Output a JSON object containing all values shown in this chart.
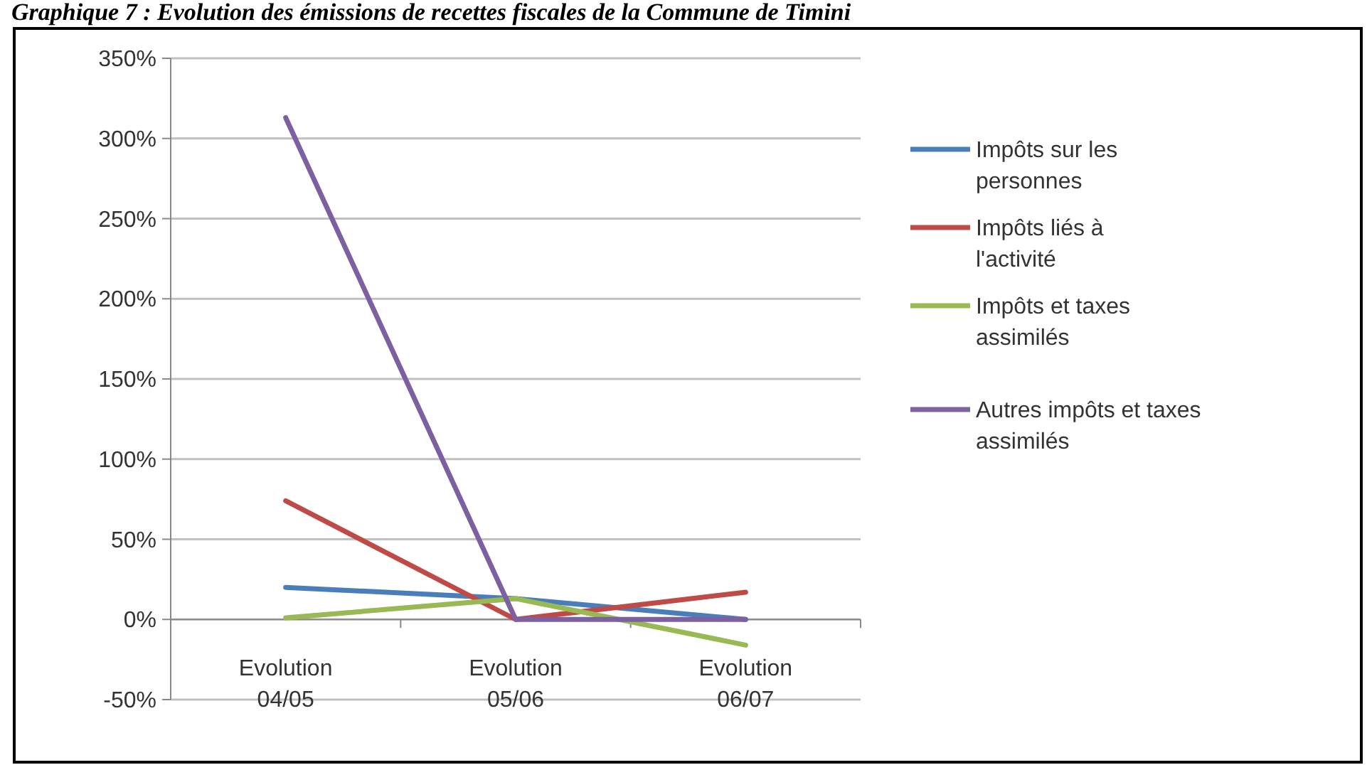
{
  "chart_data": {
    "type": "line",
    "title": "Graphique 7 : Evolution des émissions de recettes fiscales de la Commune de Timini",
    "categories": [
      "Evolution 04/05",
      "Evolution 05/06",
      "Evolution 06/07"
    ],
    "series": [
      {
        "name": "Impôts sur les personnes",
        "color": "#4a7ebb",
        "values": [
          20,
          13,
          0
        ]
      },
      {
        "name": "Impôts liés à l'activité",
        "color": "#be4b48",
        "values": [
          74,
          0,
          17
        ]
      },
      {
        "name": "Impôts et taxes assimilés",
        "color": "#98b954",
        "values": [
          1,
          13,
          -16
        ]
      },
      {
        "name": "Autres impôts et taxes assimilés",
        "color": "#7d60a0",
        "values": [
          313,
          0,
          0
        ]
      }
    ],
    "ylim": [
      -50,
      350
    ],
    "yticks": [
      {
        "value": -50,
        "label": "-50%"
      },
      {
        "value": 0,
        "label": "0%"
      },
      {
        "value": 50,
        "label": "50%"
      },
      {
        "value": 100,
        "label": "100%"
      },
      {
        "value": 150,
        "label": "150%"
      },
      {
        "value": 200,
        "label": "200%"
      },
      {
        "value": 250,
        "label": "250%"
      },
      {
        "value": 300,
        "label": "300%"
      },
      {
        "value": 350,
        "label": "350%"
      }
    ],
    "grid": "y",
    "legend": "right",
    "marker": "none",
    "line_style": "solid"
  }
}
